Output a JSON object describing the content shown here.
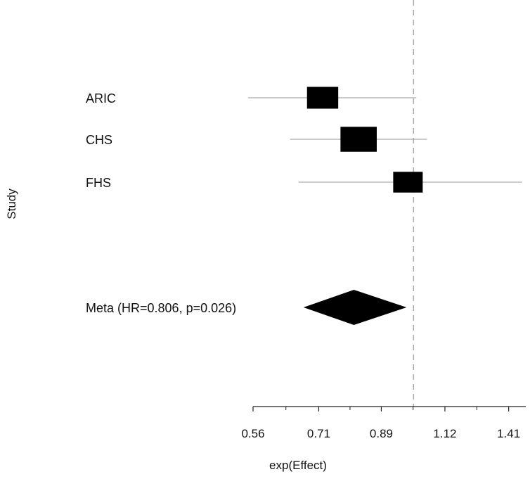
{
  "chart_data": {
    "type": "forest",
    "ylabel": "Study",
    "xlabel": "exp(Effect)",
    "x_scale": "log",
    "xlim": [
      0.56,
      1.5
    ],
    "x_ticks": [
      "0.56",
      "0.71",
      "0.89",
      "1.12",
      "1.41"
    ],
    "x_tick_values": [
      0.56,
      0.71,
      0.89,
      1.12,
      1.41
    ],
    "reference_line": 1.0,
    "studies": [
      {
        "label": "ARIC",
        "estimate": 0.72,
        "ci_low": 0.55,
        "ci_high": 1.01,
        "weight": 0.3
      },
      {
        "label": "CHS",
        "estimate": 0.82,
        "ci_low": 0.64,
        "ci_high": 1.05,
        "weight": 0.45
      },
      {
        "label": "FHS",
        "estimate": 0.98,
        "ci_low": 0.66,
        "ci_high": 1.48,
        "weight": 0.25
      }
    ],
    "meta": {
      "label": "Meta (HR=0.806, p=0.026)",
      "estimate": 0.806,
      "ci_low": 0.672,
      "ci_high": 0.975
    }
  },
  "colors": {
    "marker": "#000000",
    "ci_line": "#aaaaaa",
    "reference_line": "#aaaaaa",
    "axis": "#222222",
    "text": "#111111"
  }
}
